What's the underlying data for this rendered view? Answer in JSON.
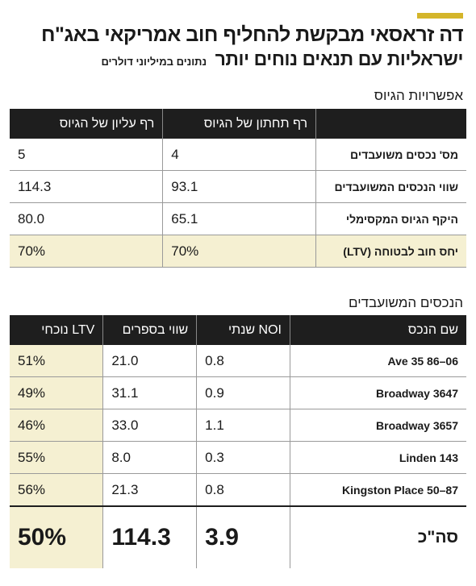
{
  "header": {
    "title": "דה זראסאי מבקשת להחליף חוב אמריקאי באג\"ח",
    "subtitle": "ישראליות עם תנאים נוחים יותר",
    "note": "נתונים במיליוני דולרים",
    "accent_color": "#d4b52a"
  },
  "options": {
    "section_title": "אפשרויות הגיוס",
    "columns": [
      "",
      "רף תחתון של הגיוס",
      "רף עליון של הגיוס"
    ],
    "rows": [
      {
        "label": "מס' נכסים משועבדים",
        "low": "4",
        "high": "5"
      },
      {
        "label": "שווי הנכסים המשועבדים",
        "low": "93.1",
        "high": "114.3"
      },
      {
        "label": "היקף הגיוס המקסימלי",
        "low": "65.1",
        "high": "80.0"
      },
      {
        "label": "יחס חוב לבטוחה (LTV)",
        "low": "70%",
        "high": "70%"
      }
    ]
  },
  "assets": {
    "section_title": "הנכסים המשועבדים",
    "columns": [
      "שם הנכס",
      "NOI שנתי",
      "שווי בספרים",
      "LTV נוכחי"
    ],
    "rows": [
      {
        "name": "06–86 35 Ave",
        "noi": "0.8",
        "book": "21.0",
        "ltv": "51%"
      },
      {
        "name": "3647 Broadway",
        "noi": "0.9",
        "book": "31.1",
        "ltv": "49%"
      },
      {
        "name": "3657 Broadway",
        "noi": "1.1",
        "book": "33.0",
        "ltv": "46%"
      },
      {
        "name": "143 Linden",
        "noi": "0.3",
        "book": "8.0",
        "ltv": "55%"
      },
      {
        "name": "87–50 Kingston Place",
        "noi": "0.8",
        "book": "21.3",
        "ltv": "56%"
      }
    ],
    "total": {
      "label": "סה\"כ",
      "noi": "3.9",
      "book": "114.3",
      "ltv": "50%"
    }
  }
}
